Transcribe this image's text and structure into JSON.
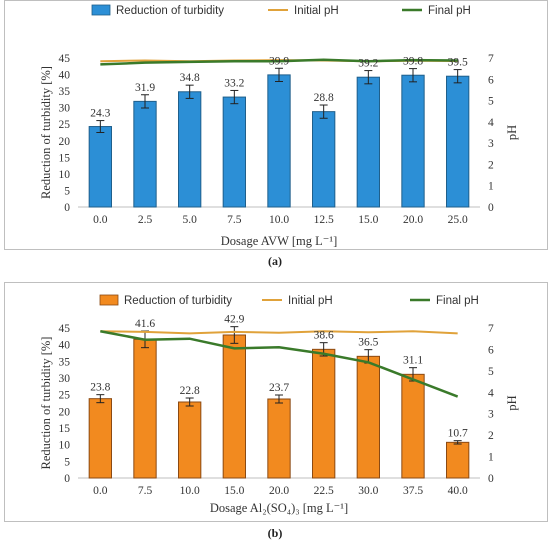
{
  "chart_data": [
    {
      "type": "bar",
      "panel_label": "(a)",
      "categories": [
        "0.0",
        "2.5",
        "5.0",
        "7.5",
        "10.0",
        "12.5",
        "15.0",
        "20.0",
        "25.0"
      ],
      "series": [
        {
          "name": "Reduction of turbidity",
          "type": "bar",
          "axis": "left",
          "values": [
            24.3,
            31.9,
            34.8,
            33.2,
            39.9,
            28.8,
            39.2,
            39.8,
            39.5
          ],
          "errors": [
            1.8,
            2.0,
            2.0,
            2.0,
            2.0,
            2.0,
            2.0,
            2.0,
            2.0
          ]
        },
        {
          "name": "Initial pH",
          "type": "line",
          "axis": "right",
          "values": [
            6.85,
            6.88,
            6.85,
            6.88,
            6.9,
            6.88,
            6.85,
            6.87,
            6.86
          ]
        },
        {
          "name": "Final pH",
          "type": "line",
          "axis": "right",
          "values": [
            6.7,
            6.78,
            6.82,
            6.85,
            6.85,
            6.92,
            6.85,
            6.9,
            6.88
          ]
        }
      ],
      "xlabel": "Dosage AVW [mg L⁻¹]",
      "ylabel": "Reduction of turbidity [%]",
      "y2label": "pH",
      "ylim": [
        0,
        45
      ],
      "y2lim": [
        0,
        7
      ],
      "yticks": [
        "0",
        "5",
        "10",
        "15",
        "20",
        "25",
        "30",
        "35",
        "40",
        "45"
      ],
      "y2ticks": [
        "0",
        "1",
        "2",
        "3",
        "4",
        "5",
        "6",
        "7"
      ],
      "legend": "top",
      "grid": false,
      "colors": {
        "bar": "#2c8fd6",
        "bar_border": "#1f5f8b",
        "initial_ph": "#e0a23a",
        "final_ph": "#3a7a2a"
      }
    },
    {
      "type": "bar",
      "panel_label": "(b)",
      "categories": [
        "0.0",
        "7.5",
        "10.0",
        "15.0",
        "20.0",
        "22.5",
        "30.0",
        "37.5",
        "40.0"
      ],
      "series": [
        {
          "name": "Reduction of turbidity",
          "type": "bar",
          "axis": "left",
          "values": [
            23.8,
            41.6,
            22.8,
            42.9,
            23.7,
            38.6,
            36.5,
            31.1,
            10.7
          ],
          "errors": [
            1.2,
            2.5,
            1.2,
            2.5,
            1.2,
            2.0,
            2.0,
            2.0,
            0.5
          ]
        },
        {
          "name": "Initial pH",
          "type": "line",
          "axis": "right",
          "values": [
            6.85,
            6.82,
            6.75,
            6.82,
            6.78,
            6.85,
            6.8,
            6.85,
            6.75
          ]
        },
        {
          "name": "Final pH",
          "type": "line",
          "axis": "right",
          "values": [
            6.85,
            6.45,
            6.5,
            6.05,
            6.1,
            5.8,
            5.4,
            4.6,
            3.8
          ]
        }
      ],
      "xlabel": "Dosage Al₂(SO₄)₃ [mg L⁻¹]",
      "ylabel": "Reduction of turbidity [%]",
      "y2label": "pH",
      "ylim": [
        0,
        45
      ],
      "y2lim": [
        0,
        7
      ],
      "yticks": [
        "0",
        "5",
        "10",
        "15",
        "20",
        "25",
        "30",
        "35",
        "40",
        "45"
      ],
      "y2ticks": [
        "0",
        "1",
        "2",
        "3",
        "4",
        "5",
        "6",
        "7"
      ],
      "legend": "top",
      "grid": false,
      "colors": {
        "bar": "#f28a1f",
        "bar_border": "#8b4a13",
        "initial_ph": "#e0a23a",
        "final_ph": "#3a7a2a"
      }
    }
  ]
}
